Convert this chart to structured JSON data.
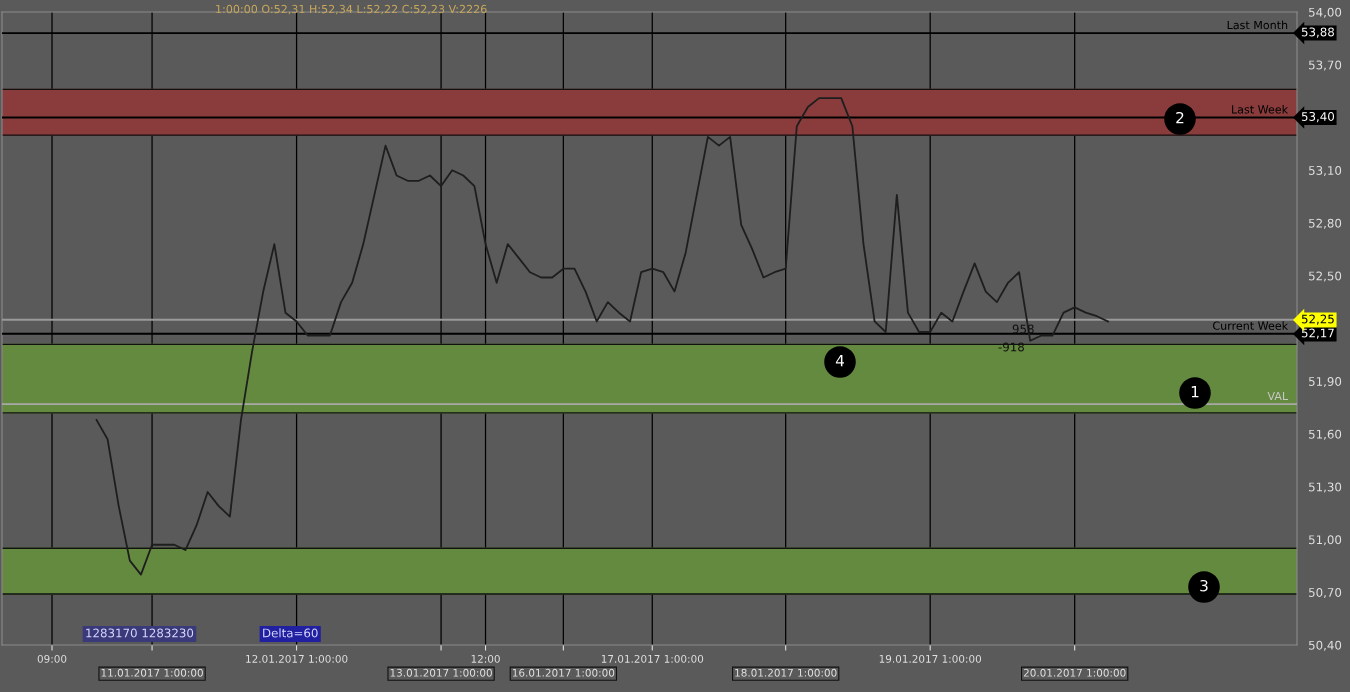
{
  "chart_data": {
    "type": "line",
    "categories": [
      "09:00",
      null,
      null,
      null,
      null,
      null,
      null,
      null,
      null,
      "11.01.2017 1:00:00",
      null,
      null,
      null,
      null,
      null,
      null,
      null,
      null,
      null,
      null,
      null,
      null,
      "12.01.2017 1:00:00",
      null,
      null,
      null,
      null,
      null,
      null,
      null,
      null,
      null,
      null,
      null,
      null,
      "13.01.2017 1:00:00",
      null,
      null,
      null,
      "12:00",
      null,
      null,
      null,
      null,
      null,
      null,
      "16.01.2017 1:00:00",
      null,
      null,
      null,
      null,
      null,
      null,
      null,
      "17.01.2017 1:00:00",
      null,
      null,
      null,
      null,
      null,
      null,
      null,
      null,
      null,
      null,
      null,
      "18.01.2017 1:00:00",
      null,
      null,
      null,
      null,
      null,
      null,
      null,
      null,
      null,
      null,
      null,
      null,
      "19.01.2017 1:00:00",
      null,
      null,
      null,
      null,
      null,
      null,
      null,
      null,
      null,
      null,
      null,
      null,
      "20.01.2017 1:00:00",
      null,
      null,
      null
    ],
    "series": [
      {
        "color": "#1e1e1e",
        "values": [
          null,
          null,
          null,
          null,
          51.68,
          51.57,
          51.19,
          50.88,
          50.8,
          50.97,
          50.97,
          50.97,
          50.94,
          51.08,
          51.27,
          51.19,
          51.13,
          51.68,
          52.07,
          52.41,
          52.68,
          52.29,
          52.24,
          52.16,
          52.16,
          52.16,
          52.35,
          52.46,
          52.68,
          52.96,
          53.24,
          53.07,
          53.04,
          53.04,
          53.07,
          53.01,
          53.1,
          53.07,
          53.01,
          52.68,
          52.46,
          52.68,
          52.6,
          52.52,
          52.49,
          52.49,
          52.54,
          52.54,
          52.41,
          52.24,
          52.35,
          52.29,
          52.24,
          52.52,
          52.54,
          52.52,
          52.41,
          52.63,
          52.96,
          53.29,
          53.24,
          53.29,
          52.79,
          52.65,
          52.49,
          52.52,
          52.54,
          53.35,
          53.46,
          53.51,
          53.51,
          53.51,
          53.35,
          52.68,
          52.24,
          52.18,
          52.96,
          52.29,
          52.18,
          52.18,
          52.29,
          52.24,
          52.41,
          52.57,
          52.41,
          52.35,
          52.46,
          52.52,
          52.13,
          52.16,
          52.16,
          52.29,
          52.32,
          52.29,
          52.27,
          52.24
        ]
      }
    ],
    "ylim": [
      50.4,
      54.0
    ],
    "yticks": [
      {
        "value": 54.0,
        "label": "54,00"
      },
      {
        "value": 53.7,
        "label": "53,70"
      },
      {
        "value": 53.1,
        "label": "53,10"
      },
      {
        "value": 52.8,
        "label": "52,80"
      },
      {
        "value": 52.5,
        "label": "52,50"
      },
      {
        "value": 51.9,
        "label": "51,90"
      },
      {
        "value": 51.6,
        "label": "51,60"
      },
      {
        "value": 51.3,
        "label": "51,30"
      },
      {
        "value": 51.0,
        "label": "51,00"
      },
      {
        "value": 50.7,
        "label": "50,70"
      },
      {
        "value": 50.4,
        "label": "50,40"
      }
    ],
    "bands": [
      {
        "axis": "y",
        "from": 51.72,
        "to": 52.11,
        "label": null,
        "color": "#638a3f"
      },
      {
        "axis": "y",
        "from": 53.3,
        "to": 53.56,
        "label": null,
        "color": "#8a3c3c"
      },
      {
        "axis": "y",
        "from": 50.69,
        "to": 50.95,
        "label": null,
        "color": "#638a3f"
      }
    ],
    "ref_lines": [
      {
        "axis": "y",
        "value": 53.88,
        "label": "Last Month",
        "color": "#000000"
      },
      {
        "axis": "y",
        "value": 53.4,
        "label": "Last Week",
        "color": "#000000"
      },
      {
        "axis": "y",
        "value": 52.17,
        "label": "Current Week",
        "color": "#000000"
      },
      {
        "axis": "y",
        "value": 52.25,
        "label": null,
        "color": "#9a9a9a"
      },
      {
        "axis": "y",
        "value": 51.77,
        "label": "VAL",
        "color": "#a8a8a8"
      }
    ],
    "annotations": [
      "1:00:00 O:52,31 H:52,34 L:52,22 C:52,23 V:2226",
      "1283170 1283230",
      "Delta=60",
      "1",
      "2",
      "3",
      "4",
      "958",
      "-918",
      "53,88",
      "53,40",
      "52,17",
      "52,25"
    ],
    "grid": "x",
    "marker": "none",
    "line_style": "solid",
    "legend": false
  }
}
